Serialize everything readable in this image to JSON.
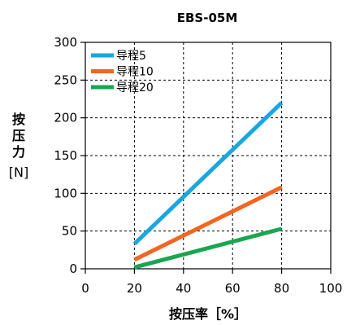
{
  "chart_data": {
    "type": "line",
    "title": "EBS-05M",
    "xlabel": "按压率［%］",
    "ylabel_lines": [
      "按",
      "压",
      "力",
      "[N]"
    ],
    "xlim": [
      0,
      100
    ],
    "ylim": [
      0,
      300
    ],
    "x_ticks": [
      0,
      20,
      40,
      60,
      80,
      100
    ],
    "y_ticks": [
      0,
      50,
      100,
      150,
      200,
      250,
      300
    ],
    "grid": true,
    "legend_position": "top-left",
    "series": [
      {
        "name": "导程5",
        "color": "#1aa6e0",
        "x": [
          20,
          80
        ],
        "y": [
          33,
          220
        ]
      },
      {
        "name": "导程10",
        "color": "#f26522",
        "x": [
          20,
          80
        ],
        "y": [
          12,
          108
        ]
      },
      {
        "name": "导程20",
        "color": "#1aa651",
        "x": [
          20,
          80
        ],
        "y": [
          2,
          53
        ]
      }
    ]
  }
}
